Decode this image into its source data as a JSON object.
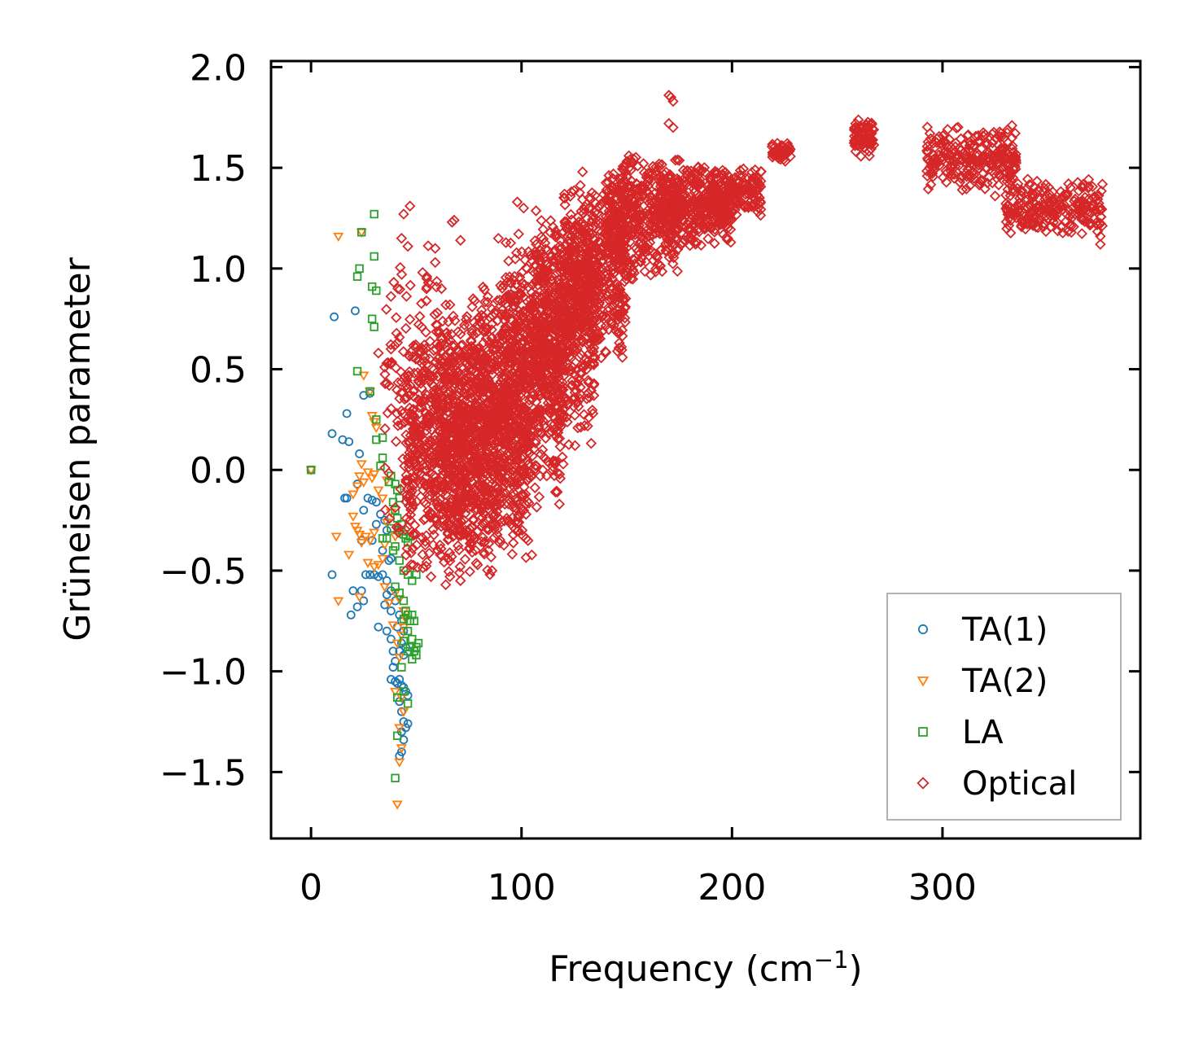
{
  "chart_data": {
    "type": "scatter",
    "title": "",
    "xlabel": "Frequency (cm",
    "xlabel_sup": "−1",
    "xlabel_close": ")",
    "ylabel": "Grüneisen parameter",
    "xlim": [
      -19,
      394
    ],
    "ylim": [
      -1.83,
      2.03
    ],
    "xticks": [
      0,
      100,
      200,
      300
    ],
    "xtick_labels": [
      "0",
      "100",
      "200",
      "300"
    ],
    "yticks": [
      -1.5,
      -1.0,
      -0.5,
      0.0,
      0.5,
      1.0,
      1.5,
      2.0
    ],
    "ytick_labels": [
      "−1.5",
      "−1.0",
      "−0.5",
      "0.0",
      "0.5",
      "1.0",
      "1.5",
      "2.0"
    ],
    "legend_position": "lower-right",
    "series": [
      {
        "name": "TA(1)",
        "marker": "circle",
        "color": "#1f77b4",
        "points": [
          [
            0,
            0
          ],
          [
            11,
            0.76
          ],
          [
            21,
            0.79
          ],
          [
            10,
            0.18
          ],
          [
            17,
            0.28
          ],
          [
            15,
            0.15
          ],
          [
            18,
            0.14
          ],
          [
            23,
            0.08
          ],
          [
            25,
            0.37
          ],
          [
            28,
            0.38
          ],
          [
            16,
            -0.14
          ],
          [
            17,
            -0.14
          ],
          [
            22,
            -0.07
          ],
          [
            25,
            -0.2
          ],
          [
            27,
            -0.14
          ],
          [
            29,
            -0.15
          ],
          [
            31,
            -0.16
          ],
          [
            33,
            -0.22
          ],
          [
            35,
            -0.25
          ],
          [
            36,
            -0.3
          ],
          [
            34,
            -0.4
          ],
          [
            37,
            -0.45
          ],
          [
            38,
            -0.44
          ],
          [
            24,
            -0.35
          ],
          [
            31,
            -0.27
          ],
          [
            29,
            -0.35
          ],
          [
            10,
            -0.52
          ],
          [
            20,
            -0.6
          ],
          [
            24,
            -0.6
          ],
          [
            26,
            -0.52
          ],
          [
            28,
            -0.52
          ],
          [
            30,
            -0.52
          ],
          [
            32,
            -0.53
          ],
          [
            34,
            -0.52
          ],
          [
            36,
            -0.55
          ],
          [
            36,
            -0.62
          ],
          [
            38,
            -0.6
          ],
          [
            25,
            -0.65
          ],
          [
            22,
            -0.68
          ],
          [
            19,
            -0.72
          ],
          [
            35,
            -0.67
          ],
          [
            38,
            -0.7
          ],
          [
            40,
            -0.65
          ],
          [
            41,
            -0.78
          ],
          [
            42,
            -0.72
          ],
          [
            43,
            -0.75
          ],
          [
            44,
            -0.8
          ],
          [
            32,
            -0.78
          ],
          [
            36,
            -0.8
          ],
          [
            38,
            -0.84
          ],
          [
            39,
            -0.9
          ],
          [
            40,
            -0.95
          ],
          [
            42,
            -0.9
          ],
          [
            43,
            -0.86
          ],
          [
            44,
            -0.92
          ],
          [
            45,
            -0.88
          ],
          [
            40,
            -1.05
          ],
          [
            41,
            -1.06
          ],
          [
            42,
            -1.04
          ],
          [
            43,
            -1.07
          ],
          [
            44,
            -1.08
          ],
          [
            45,
            -1.1
          ],
          [
            46,
            -1.12
          ],
          [
            42,
            -1.15
          ],
          [
            43,
            -1.2
          ],
          [
            44,
            -1.25
          ],
          [
            45,
            -1.28
          ],
          [
            46,
            -1.26
          ],
          [
            43,
            -1.3
          ],
          [
            44,
            -1.34
          ],
          [
            42,
            -1.42
          ],
          [
            43,
            -1.4
          ],
          [
            38,
            -1.04
          ],
          [
            39,
            -0.98
          ]
        ]
      },
      {
        "name": "TA(2)",
        "marker": "triangle-down",
        "color": "#ff7f0e",
        "points": [
          [
            0,
            0
          ],
          [
            13,
            1.16
          ],
          [
            24,
            1.18
          ],
          [
            25,
            0.47
          ],
          [
            28,
            0.39
          ],
          [
            29,
            0.27
          ],
          [
            30,
            0.24
          ],
          [
            31,
            0.21
          ],
          [
            20,
            -0.12
          ],
          [
            22,
            -0.08
          ],
          [
            24,
            0.03
          ],
          [
            23,
            -0.03
          ],
          [
            25,
            -0.06
          ],
          [
            27,
            -0.01
          ],
          [
            29,
            -0.04
          ],
          [
            30,
            -0.02
          ],
          [
            32,
            -0.1
          ],
          [
            20,
            -0.23
          ],
          [
            21,
            -0.28
          ],
          [
            22,
            -0.3
          ],
          [
            23,
            -0.32
          ],
          [
            24,
            -0.36
          ],
          [
            26,
            -0.33
          ],
          [
            28,
            -0.35
          ],
          [
            30,
            -0.31
          ],
          [
            12,
            -0.33
          ],
          [
            18,
            -0.42
          ],
          [
            27,
            -0.46
          ],
          [
            30,
            -0.48
          ],
          [
            32,
            -0.47
          ],
          [
            34,
            -0.44
          ],
          [
            35,
            -0.37
          ],
          [
            13,
            -0.65
          ],
          [
            23,
            -0.63
          ],
          [
            35,
            -0.58
          ],
          [
            37,
            -0.66
          ],
          [
            40,
            -0.61
          ],
          [
            42,
            -0.64
          ],
          [
            44,
            -0.7
          ],
          [
            45,
            -0.74
          ],
          [
            39,
            -0.77
          ],
          [
            41,
            -0.86
          ],
          [
            43,
            -0.82
          ],
          [
            44,
            -0.78
          ],
          [
            42,
            -0.93
          ],
          [
            40,
            -1.1
          ],
          [
            43,
            -1.13
          ],
          [
            44,
            -1.2
          ],
          [
            42,
            -1.28
          ],
          [
            43,
            -1.38
          ],
          [
            42,
            -1.45
          ],
          [
            41,
            -1.66
          ],
          [
            36,
            -0.26
          ],
          [
            38,
            -0.21
          ],
          [
            40,
            -0.33
          ],
          [
            34,
            -0.14
          ],
          [
            36,
            -0.05
          ]
        ]
      },
      {
        "name": "LA",
        "marker": "square",
        "color": "#2ca02c",
        "points": [
          [
            0,
            0
          ],
          [
            30,
            1.27
          ],
          [
            24,
            1.18
          ],
          [
            23,
            1.0
          ],
          [
            30,
            1.06
          ],
          [
            22,
            0.96
          ],
          [
            29,
            0.91
          ],
          [
            31,
            0.89
          ],
          [
            29,
            0.75
          ],
          [
            30,
            0.71
          ],
          [
            22,
            0.49
          ],
          [
            28,
            0.39
          ],
          [
            31,
            0.25
          ],
          [
            34,
            0.16
          ],
          [
            31,
            0.15
          ],
          [
            34,
            0.06
          ],
          [
            33,
            0.02
          ],
          [
            38,
            -0.03
          ],
          [
            37,
            -0.06
          ],
          [
            40,
            -0.07
          ],
          [
            41,
            -0.1
          ],
          [
            42,
            -0.14
          ],
          [
            39,
            -0.16
          ],
          [
            40,
            -0.2
          ],
          [
            41,
            -0.24
          ],
          [
            43,
            -0.27
          ],
          [
            44,
            -0.32
          ],
          [
            45,
            -0.34
          ],
          [
            46,
            -0.36
          ],
          [
            42,
            -0.3
          ],
          [
            38,
            -0.29
          ],
          [
            36,
            -0.34
          ],
          [
            34,
            -0.34
          ],
          [
            40,
            -0.38
          ],
          [
            47,
            -0.33
          ],
          [
            39,
            -0.4
          ],
          [
            42,
            -0.45
          ],
          [
            44,
            -0.5
          ],
          [
            46,
            -0.52
          ],
          [
            48,
            -0.55
          ],
          [
            50,
            -0.52
          ],
          [
            40,
            -0.58
          ],
          [
            42,
            -0.61
          ],
          [
            44,
            -0.65
          ],
          [
            45,
            -0.7
          ],
          [
            46,
            -0.72
          ],
          [
            47,
            -0.75
          ],
          [
            48,
            -0.72
          ],
          [
            49,
            -0.75
          ],
          [
            44,
            -0.74
          ],
          [
            46,
            -0.8
          ],
          [
            48,
            -0.84
          ],
          [
            47,
            -0.88
          ],
          [
            49,
            -0.9
          ],
          [
            50,
            -0.88
          ],
          [
            51,
            -0.86
          ],
          [
            50,
            -0.92
          ],
          [
            48,
            -0.94
          ],
          [
            46,
            -0.9
          ],
          [
            44,
            -0.85
          ],
          [
            41,
            -1.13
          ],
          [
            44,
            -1.1
          ],
          [
            46,
            -1.16
          ],
          [
            41,
            -1.32
          ],
          [
            40,
            -1.53
          ],
          [
            43,
            -0.98
          ]
        ]
      },
      {
        "name": "Optical",
        "marker": "diamond",
        "color": "#d62728",
        "clusters": [
          {
            "x": [
              35,
              60
            ],
            "y": [
              -0.5,
              1.3
            ],
            "n": 140
          },
          {
            "x": [
              45,
              75
            ],
            "y": [
              -0.55,
              0.75
            ],
            "n": 480
          },
          {
            "x": [
              60,
              90
            ],
            "y": [
              -0.55,
              0.85
            ],
            "n": 520
          },
          {
            "x": [
              75,
              105
            ],
            "y": [
              -0.5,
              1.0
            ],
            "n": 560
          },
          {
            "x": [
              90,
              120
            ],
            "y": [
              -0.2,
              1.2
            ],
            "n": 560
          },
          {
            "x": [
              105,
              135
            ],
            "y": [
              0.1,
              1.3
            ],
            "n": 520
          },
          {
            "x": [
              120,
              150
            ],
            "y": [
              0.5,
              1.45
            ],
            "n": 480
          },
          {
            "x": [
              140,
              175
            ],
            "y": [
              0.9,
              1.6
            ],
            "n": 420
          },
          {
            "x": [
              165,
              200
            ],
            "y": [
              1.1,
              1.55
            ],
            "n": 360
          },
          {
            "x": [
              190,
              214
            ],
            "y": [
              1.25,
              1.5
            ],
            "n": 160
          },
          {
            "x": [
              219,
              228
            ],
            "y": [
              1.53,
              1.63
            ],
            "n": 50
          },
          {
            "x": [
              258,
              268
            ],
            "y": [
              1.55,
              1.75
            ],
            "n": 80
          },
          {
            "x": [
              292,
              335
            ],
            "y": [
              1.38,
              1.72
            ],
            "n": 260
          },
          {
            "x": [
              330,
              376
            ],
            "y": [
              1.15,
              1.45
            ],
            "n": 240
          }
        ],
        "points": [
          [
            171,
            1.85
          ],
          [
            172,
            1.83
          ],
          [
            170,
            1.86
          ],
          [
            172,
            1.7
          ],
          [
            170,
            1.72
          ],
          [
            98,
            1.33
          ],
          [
            101,
            1.3
          ],
          [
            47,
            1.31
          ],
          [
            44,
            1.27
          ],
          [
            43,
            1.15
          ],
          [
            46,
            1.11
          ],
          [
            67,
            1.23
          ],
          [
            71,
            1.14
          ],
          [
            89,
            1.15
          ],
          [
            129,
            1.48
          ],
          [
            134,
            1.26
          ],
          [
            141,
            1.05
          ],
          [
            152,
            1.49
          ],
          [
            126,
            0.99
          ],
          [
            152,
            0.95
          ],
          [
            131,
            0.95
          ],
          [
            107,
            1.12
          ],
          [
            137,
            0.83
          ],
          [
            138,
            0.76
          ],
          [
            77,
            0.85
          ],
          [
            84,
            0.86
          ],
          [
            91,
            0.67
          ],
          [
            123,
            0.59
          ],
          [
            131,
            0.5
          ],
          [
            128,
            0.41
          ],
          [
            132,
            0.26
          ],
          [
            130,
            0.22
          ],
          [
            102,
            0.27
          ],
          [
            99,
            0.12
          ],
          [
            110,
            0.1
          ],
          [
            118,
            -0.17
          ],
          [
            117,
            -0.11
          ],
          [
            85,
            -0.52
          ],
          [
            86,
            -0.5
          ],
          [
            66,
            -0.53
          ],
          [
            71,
            -0.55
          ],
          [
            65,
            -0.44
          ],
          [
            64,
            -0.57
          ],
          [
            55,
            0.96
          ],
          [
            59,
            1.03
          ],
          [
            53,
            0.98
          ],
          [
            62,
            0.9
          ],
          [
            55,
            0.95
          ],
          [
            66,
            0.82
          ],
          [
            60,
            0.78
          ],
          [
            68,
            1.24
          ],
          [
            59,
            1.1
          ],
          [
            53,
            -0.42
          ],
          [
            57,
            -0.53
          ],
          [
            36,
            0.53
          ],
          [
            38,
            0.6
          ],
          [
            32,
            0.58
          ],
          [
            35,
            0.51
          ],
          [
            72,
            0.07
          ],
          [
            93,
            -0.24
          ],
          [
            95,
            -0.27
          ],
          [
            112,
            -0.03
          ],
          [
            211,
            1.49
          ],
          [
            210,
            1.45
          ],
          [
            201,
            1.36
          ],
          [
            192,
            1.29
          ],
          [
            333,
            1.71
          ],
          [
            331,
            1.69
          ],
          [
            325,
            1.36
          ],
          [
            375,
            1.12
          ],
          [
            375,
            1.16
          ]
        ]
      }
    ]
  }
}
